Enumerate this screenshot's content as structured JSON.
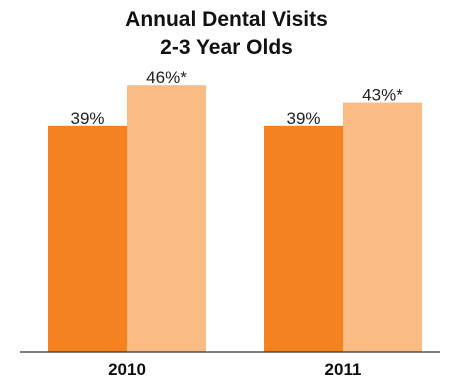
{
  "chart_data": {
    "type": "bar",
    "title": [
      "Annual Dental Visits",
      "2-3 Year Olds"
    ],
    "categories": [
      "2010",
      "2011"
    ],
    "series": [
      {
        "color": "#f58220",
        "values": [
          39,
          39
        ],
        "labels": [
          "39%",
          "39%"
        ]
      },
      {
        "color": "#fbbb85",
        "values": [
          46,
          43
        ],
        "labels": [
          "46%*",
          "43%*"
        ]
      }
    ],
    "ylim": [
      0,
      50
    ],
    "grid": false,
    "legend": "none",
    "axis_color": "#333333"
  }
}
